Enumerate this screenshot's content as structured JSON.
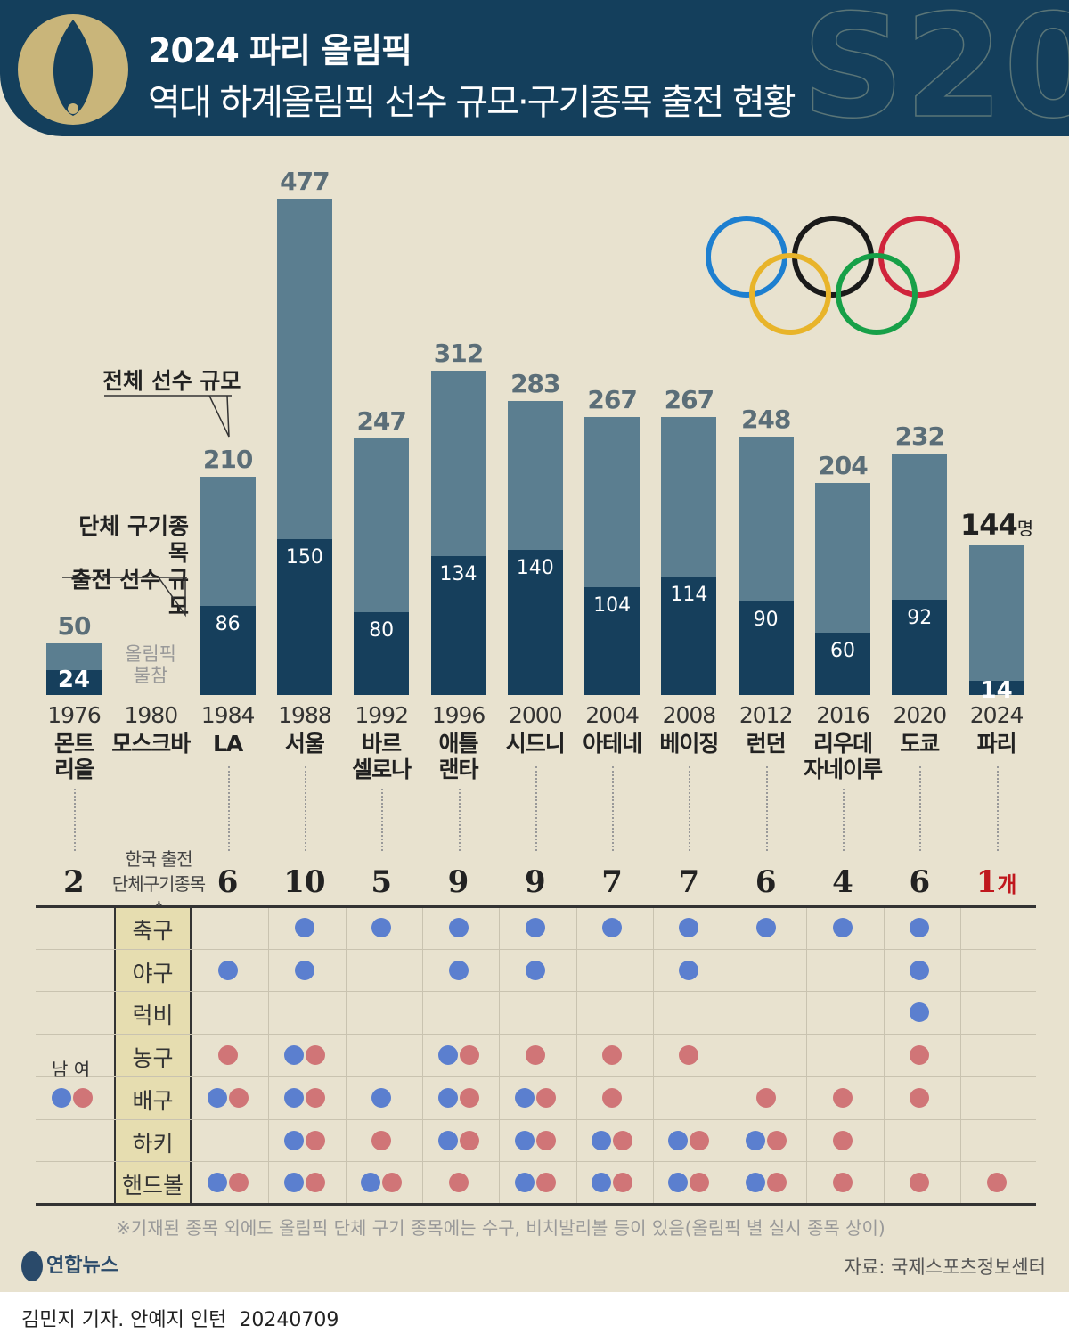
{
  "header": {
    "title": "2024 파리 올림픽",
    "subtitle": "역대 하계올림픽 선수 규모·구기종목 출전 현황"
  },
  "annotations": {
    "total_label": "전체 선수 규모",
    "team_label_1": "단체 구기종목",
    "team_label_2": "출전 선수 규모",
    "absent_1": "올림픽",
    "absent_2": "불참",
    "unit": "명",
    "count_label_1": "한국 출전",
    "count_label_2": "단체구기종목수",
    "count_unit": "개",
    "legend_male": "남",
    "legend_female": "여"
  },
  "colors": {
    "total_bar": "#5b7e90",
    "team_bar": "#163f5c",
    "male": "#5b7fcf",
    "female": "#d07577",
    "highlight": "#c0171d",
    "background": "#e8e2cf"
  },
  "chart_data": {
    "type": "bar",
    "categories": [
      "1976",
      "1980",
      "1984",
      "1988",
      "1992",
      "1996",
      "2000",
      "2004",
      "2008",
      "2012",
      "2016",
      "2020",
      "2024"
    ],
    "cities": [
      [
        "몬트",
        "리올"
      ],
      [
        "모스크바"
      ],
      [
        "LA"
      ],
      [
        "서울"
      ],
      [
        "바르",
        "셀로나"
      ],
      [
        "애틀",
        "랜타"
      ],
      [
        "시드니"
      ],
      [
        "아테네"
      ],
      [
        "베이징"
      ],
      [
        "런던"
      ],
      [
        "리우데",
        "자네이루"
      ],
      [
        "도쿄"
      ],
      [
        "파리"
      ]
    ],
    "series": [
      {
        "name": "전체 선수 규모",
        "values": [
          50,
          null,
          210,
          477,
          247,
          312,
          283,
          267,
          267,
          248,
          204,
          232,
          144
        ]
      },
      {
        "name": "단체 구기종목 출전 선수 규모",
        "values": [
          24,
          null,
          86,
          150,
          80,
          134,
          140,
          104,
          114,
          90,
          60,
          92,
          14
        ]
      }
    ],
    "team_sport_counts": [
      2,
      null,
      6,
      10,
      5,
      9,
      9,
      7,
      7,
      6,
      4,
      6,
      1
    ],
    "ylim": [
      0,
      477
    ]
  },
  "table": {
    "columns": [
      "1984",
      "1988",
      "1992",
      "1996",
      "2000",
      "2004",
      "2008",
      "2012",
      "2016",
      "2020",
      "2024"
    ],
    "rows": [
      {
        "sport": "축구",
        "cells": [
          "",
          "M",
          "M",
          "M",
          "M",
          "M",
          "M",
          "M",
          "M",
          "M",
          ""
        ]
      },
      {
        "sport": "야구",
        "cells": [
          "M",
          "M",
          "",
          "M",
          "M",
          "",
          "M",
          "",
          "",
          "M",
          ""
        ]
      },
      {
        "sport": "럭비",
        "cells": [
          "",
          "",
          "",
          "",
          "",
          "",
          "",
          "",
          "",
          "M",
          ""
        ]
      },
      {
        "sport": "농구",
        "cells": [
          "W",
          "MW",
          "",
          "MW",
          "W",
          "W",
          "W",
          "",
          "",
          "W",
          ""
        ]
      },
      {
        "sport": "배구",
        "cells": [
          "MW",
          "MW",
          "M",
          "MW",
          "MW",
          "W",
          "",
          "W",
          "W",
          "W",
          ""
        ]
      },
      {
        "sport": "하키",
        "cells": [
          "",
          "MW",
          "W",
          "MW",
          "MW",
          "MW",
          "MW",
          "MW",
          "W",
          "",
          ""
        ]
      },
      {
        "sport": "핸드볼",
        "cells": [
          "MW",
          "MW",
          "MW",
          "W",
          "MW",
          "MW",
          "MW",
          "MW",
          "W",
          "W",
          "W"
        ]
      }
    ]
  },
  "footer": {
    "note": "※기재된 종목 외에도 올림픽 단체 구기 종목에는 수구, 비치발리볼 등이 있음(올림픽 별 실시 종목 상이)",
    "logo": "연합뉴스",
    "source": "자료: 국제스포츠정보센터",
    "credit": "김민지 기자. 안예지 인턴  20240709"
  }
}
